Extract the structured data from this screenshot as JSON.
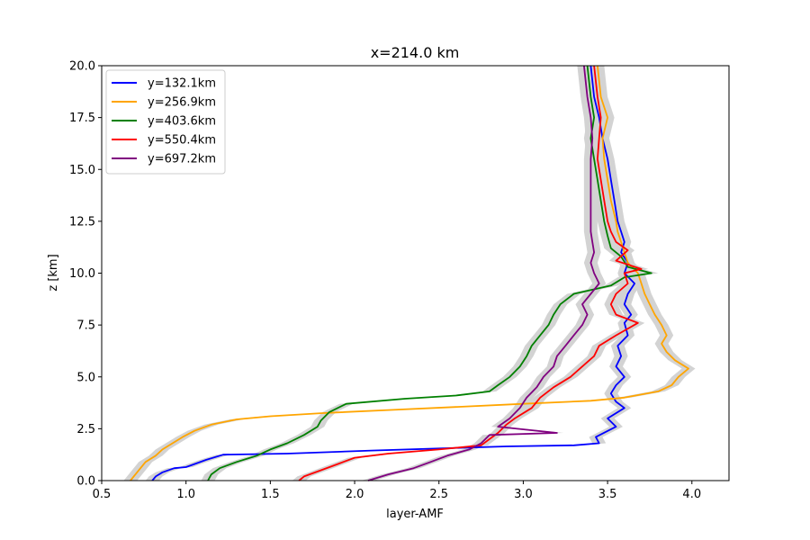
{
  "chart_data": {
    "type": "line",
    "title": "x=214.0 km",
    "xlabel": "layer-AMF",
    "ylabel": "z [km]",
    "xlim": [
      0.5,
      4.22
    ],
    "ylim": [
      0,
      20
    ],
    "xticks": [
      "0.5",
      "1.0",
      "1.5",
      "2.0",
      "2.5",
      "3.0",
      "3.5",
      "4.0"
    ],
    "yticks": [
      "0.0",
      "2.5",
      "5.0",
      "7.5",
      "10.0",
      "12.5",
      "15.0",
      "17.5",
      "20.0"
    ],
    "grid": false,
    "legend_position": "upper-left",
    "uncertainty_band_color": "#d3d3d3",
    "series": [
      {
        "name": "y=132.1km",
        "color": "#0000ff",
        "points": [
          [
            0.8,
            0.0
          ],
          [
            0.82,
            0.2
          ],
          [
            0.86,
            0.4
          ],
          [
            0.93,
            0.6
          ],
          [
            1.0,
            0.65
          ],
          [
            1.05,
            0.8
          ],
          [
            1.12,
            1.0
          ],
          [
            1.22,
            1.25
          ],
          [
            1.6,
            1.3
          ],
          [
            2.1,
            1.45
          ],
          [
            2.5,
            1.55
          ],
          [
            2.9,
            1.65
          ],
          [
            3.3,
            1.7
          ],
          [
            3.45,
            1.8
          ],
          [
            3.43,
            2.1
          ],
          [
            3.55,
            2.6
          ],
          [
            3.5,
            3.0
          ],
          [
            3.6,
            3.5
          ],
          [
            3.55,
            3.8
          ],
          [
            3.52,
            4.2
          ],
          [
            3.55,
            4.6
          ],
          [
            3.6,
            5.0
          ],
          [
            3.55,
            5.5
          ],
          [
            3.58,
            6.0
          ],
          [
            3.56,
            6.5
          ],
          [
            3.62,
            7.0
          ],
          [
            3.6,
            7.6
          ],
          [
            3.64,
            8.0
          ],
          [
            3.6,
            8.5
          ],
          [
            3.62,
            9.0
          ],
          [
            3.66,
            9.5
          ],
          [
            3.6,
            10.0
          ],
          [
            3.62,
            10.5
          ],
          [
            3.58,
            11.0
          ],
          [
            3.6,
            11.5
          ],
          [
            3.58,
            12.0
          ],
          [
            3.56,
            12.5
          ],
          [
            3.54,
            13.5
          ],
          [
            3.52,
            14.5
          ],
          [
            3.5,
            15.5
          ],
          [
            3.47,
            16.5
          ],
          [
            3.45,
            17.5
          ],
          [
            3.42,
            18.5
          ],
          [
            3.4,
            20.0
          ]
        ]
      },
      {
        "name": "y=256.9km",
        "color": "#ffa500",
        "points": [
          [
            0.67,
            0.0
          ],
          [
            0.7,
            0.3
          ],
          [
            0.73,
            0.6
          ],
          [
            0.76,
            0.9
          ],
          [
            0.82,
            1.2
          ],
          [
            0.86,
            1.5
          ],
          [
            0.92,
            1.8
          ],
          [
            0.98,
            2.1
          ],
          [
            1.05,
            2.4
          ],
          [
            1.15,
            2.7
          ],
          [
            1.3,
            2.95
          ],
          [
            1.5,
            3.1
          ],
          [
            1.8,
            3.25
          ],
          [
            2.2,
            3.4
          ],
          [
            2.6,
            3.55
          ],
          [
            3.0,
            3.7
          ],
          [
            3.4,
            3.85
          ],
          [
            3.6,
            4.0
          ],
          [
            3.8,
            4.3
          ],
          [
            3.88,
            4.6
          ],
          [
            3.92,
            5.0
          ],
          [
            3.98,
            5.4
          ],
          [
            3.9,
            5.8
          ],
          [
            3.85,
            6.2
          ],
          [
            3.82,
            6.6
          ],
          [
            3.85,
            7.0
          ],
          [
            3.82,
            7.5
          ],
          [
            3.78,
            8.0
          ],
          [
            3.75,
            8.5
          ],
          [
            3.72,
            9.0
          ],
          [
            3.7,
            9.5
          ],
          [
            3.68,
            10.0
          ],
          [
            3.62,
            10.5
          ],
          [
            3.6,
            11.0
          ],
          [
            3.58,
            11.5
          ],
          [
            3.56,
            12.0
          ],
          [
            3.55,
            12.5
          ],
          [
            3.52,
            13.5
          ],
          [
            3.5,
            14.5
          ],
          [
            3.48,
            15.5
          ],
          [
            3.47,
            16.5
          ],
          [
            3.5,
            17.5
          ],
          [
            3.46,
            18.5
          ],
          [
            3.44,
            20.0
          ]
        ]
      },
      {
        "name": "y=403.6km",
        "color": "#008000",
        "points": [
          [
            1.13,
            0.0
          ],
          [
            1.15,
            0.3
          ],
          [
            1.2,
            0.6
          ],
          [
            1.3,
            0.9
          ],
          [
            1.42,
            1.2
          ],
          [
            1.5,
            1.5
          ],
          [
            1.6,
            1.8
          ],
          [
            1.7,
            2.2
          ],
          [
            1.78,
            2.6
          ],
          [
            1.8,
            2.9
          ],
          [
            1.85,
            3.3
          ],
          [
            1.95,
            3.7
          ],
          [
            2.3,
            3.95
          ],
          [
            2.6,
            4.1
          ],
          [
            2.8,
            4.3
          ],
          [
            2.85,
            4.6
          ],
          [
            2.92,
            5.0
          ],
          [
            2.98,
            5.5
          ],
          [
            3.02,
            6.0
          ],
          [
            3.05,
            6.5
          ],
          [
            3.1,
            7.0
          ],
          [
            3.15,
            7.5
          ],
          [
            3.18,
            8.0
          ],
          [
            3.22,
            8.5
          ],
          [
            3.3,
            9.0
          ],
          [
            3.52,
            9.4
          ],
          [
            3.6,
            9.8
          ],
          [
            3.76,
            10.0
          ],
          [
            3.62,
            10.3
          ],
          [
            3.58,
            10.8
          ],
          [
            3.52,
            11.2
          ],
          [
            3.5,
            11.8
          ],
          [
            3.48,
            12.5
          ],
          [
            3.46,
            13.5
          ],
          [
            3.44,
            14.5
          ],
          [
            3.42,
            15.5
          ],
          [
            3.4,
            16.5
          ],
          [
            3.42,
            17.5
          ],
          [
            3.4,
            18.5
          ],
          [
            3.38,
            20.0
          ]
        ]
      },
      {
        "name": "y=550.4km",
        "color": "#ff0000",
        "points": [
          [
            1.67,
            0.0
          ],
          [
            1.7,
            0.2
          ],
          [
            1.8,
            0.5
          ],
          [
            1.9,
            0.8
          ],
          [
            2.0,
            1.1
          ],
          [
            2.2,
            1.3
          ],
          [
            2.5,
            1.5
          ],
          [
            2.75,
            1.7
          ],
          [
            2.8,
            2.0
          ],
          [
            2.85,
            2.3
          ],
          [
            2.9,
            2.7
          ],
          [
            2.95,
            3.0
          ],
          [
            3.05,
            3.5
          ],
          [
            3.1,
            4.0
          ],
          [
            3.18,
            4.5
          ],
          [
            3.28,
            5.0
          ],
          [
            3.35,
            5.5
          ],
          [
            3.42,
            6.0
          ],
          [
            3.45,
            6.5
          ],
          [
            3.55,
            7.0
          ],
          [
            3.68,
            7.6
          ],
          [
            3.55,
            8.0
          ],
          [
            3.52,
            8.5
          ],
          [
            3.55,
            9.0
          ],
          [
            3.62,
            9.5
          ],
          [
            3.6,
            10.0
          ],
          [
            3.7,
            10.2
          ],
          [
            3.55,
            10.6
          ],
          [
            3.62,
            11.1
          ],
          [
            3.55,
            11.5
          ],
          [
            3.52,
            12.0
          ],
          [
            3.5,
            12.5
          ],
          [
            3.48,
            13.5
          ],
          [
            3.46,
            14.5
          ],
          [
            3.44,
            15.5
          ],
          [
            3.45,
            16.5
          ],
          [
            3.46,
            17.5
          ],
          [
            3.44,
            18.5
          ],
          [
            3.42,
            20.0
          ]
        ]
      },
      {
        "name": "y=697.2km",
        "color": "#800080",
        "points": [
          [
            2.08,
            0.0
          ],
          [
            2.2,
            0.3
          ],
          [
            2.35,
            0.6
          ],
          [
            2.45,
            0.9
          ],
          [
            2.55,
            1.2
          ],
          [
            2.68,
            1.5
          ],
          [
            2.75,
            1.8
          ],
          [
            2.8,
            2.2
          ],
          [
            3.2,
            2.3
          ],
          [
            2.85,
            2.6
          ],
          [
            2.92,
            3.0
          ],
          [
            2.98,
            3.5
          ],
          [
            3.02,
            4.0
          ],
          [
            3.08,
            4.5
          ],
          [
            3.12,
            5.0
          ],
          [
            3.18,
            5.5
          ],
          [
            3.2,
            6.0
          ],
          [
            3.25,
            6.5
          ],
          [
            3.3,
            7.0
          ],
          [
            3.35,
            7.5
          ],
          [
            3.38,
            8.0
          ],
          [
            3.35,
            8.5
          ],
          [
            3.4,
            9.0
          ],
          [
            3.45,
            9.5
          ],
          [
            3.42,
            10.0
          ],
          [
            3.4,
            10.5
          ],
          [
            3.42,
            11.0
          ],
          [
            3.41,
            11.5
          ],
          [
            3.4,
            12.0
          ],
          [
            3.4,
            12.5
          ],
          [
            3.4,
            13.5
          ],
          [
            3.4,
            14.5
          ],
          [
            3.4,
            15.5
          ],
          [
            3.41,
            16.5
          ],
          [
            3.4,
            17.5
          ],
          [
            3.38,
            18.5
          ],
          [
            3.36,
            20.0
          ]
        ]
      }
    ]
  }
}
